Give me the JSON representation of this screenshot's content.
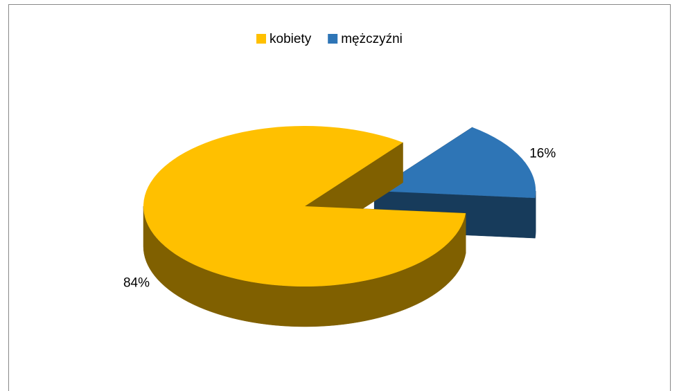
{
  "chart_data": {
    "type": "pie",
    "categories": [
      "kobiety",
      "mężczyźni"
    ],
    "values": [
      84,
      16
    ],
    "value_labels": [
      "84%",
      "16%"
    ],
    "colors": [
      "#FFC000",
      "#2E75B6"
    ],
    "legend": "top"
  }
}
